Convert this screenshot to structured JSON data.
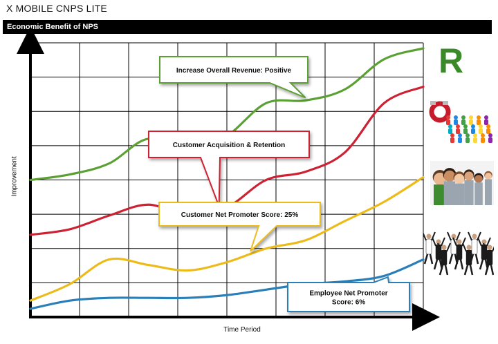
{
  "header": {
    "app_title": "X MOBILE CNPS LITE",
    "section_title": "Economic Benefit of NPS"
  },
  "chart_data": {
    "type": "line",
    "title": "Economic Benefit of NPS",
    "xlabel": "Time Period",
    "ylabel": "Improvement",
    "xlim": [
      0,
      10
    ],
    "ylim": [
      0,
      10
    ],
    "grid": true,
    "ticks_labeled": false,
    "x": [
      0,
      1,
      2,
      3,
      4,
      5,
      6,
      7,
      8,
      9,
      10
    ],
    "series": [
      {
        "name": "Increase Overall Revenue: Positive",
        "color": "#5aa032",
        "values": [
          5.0,
          5.2,
          5.6,
          6.5,
          6.0,
          6.6,
          7.8,
          7.9,
          8.3,
          9.4,
          9.8
        ]
      },
      {
        "name": "Customer Acquisition & Retention",
        "color": "#cc2233",
        "values": [
          3.0,
          3.2,
          3.7,
          4.1,
          3.7,
          4.0,
          5.0,
          5.3,
          6.0,
          7.8,
          8.4
        ]
      },
      {
        "name": "Customer Net Promoter Score: 25%",
        "color": "#ecbb1a",
        "values": [
          0.6,
          1.2,
          2.1,
          1.9,
          1.7,
          2.0,
          2.5,
          2.8,
          3.5,
          4.2,
          5.1
        ]
      },
      {
        "name": "Employee Net Promoter Score: 6%",
        "color": "#2a7fb8",
        "values": [
          0.3,
          0.6,
          0.7,
          0.7,
          0.7,
          0.8,
          1.0,
          1.2,
          1.3,
          1.5,
          2.1
        ]
      }
    ],
    "annotations": [
      {
        "text": "Increase Overall Revenue: Positive",
        "series": 0,
        "color": "#5aa032"
      },
      {
        "text": "Customer Acquisition & Retention",
        "series": 1,
        "color": "#cc2233"
      },
      {
        "text": "Customer Net Promoter Score: 25%",
        "series": 2,
        "color": "#ecbb1a"
      },
      {
        "text_lines": [
          "Employee Net Promoter",
          "Score: 6%"
        ],
        "series": 3,
        "color": "#2a7fb8"
      }
    ]
  },
  "side_images": {
    "logo_letter": "R",
    "icons": [
      "revenue-logo-icon",
      "magnet-people-icon",
      "happy-customers-icon",
      "celebrating-employees-icon"
    ]
  }
}
